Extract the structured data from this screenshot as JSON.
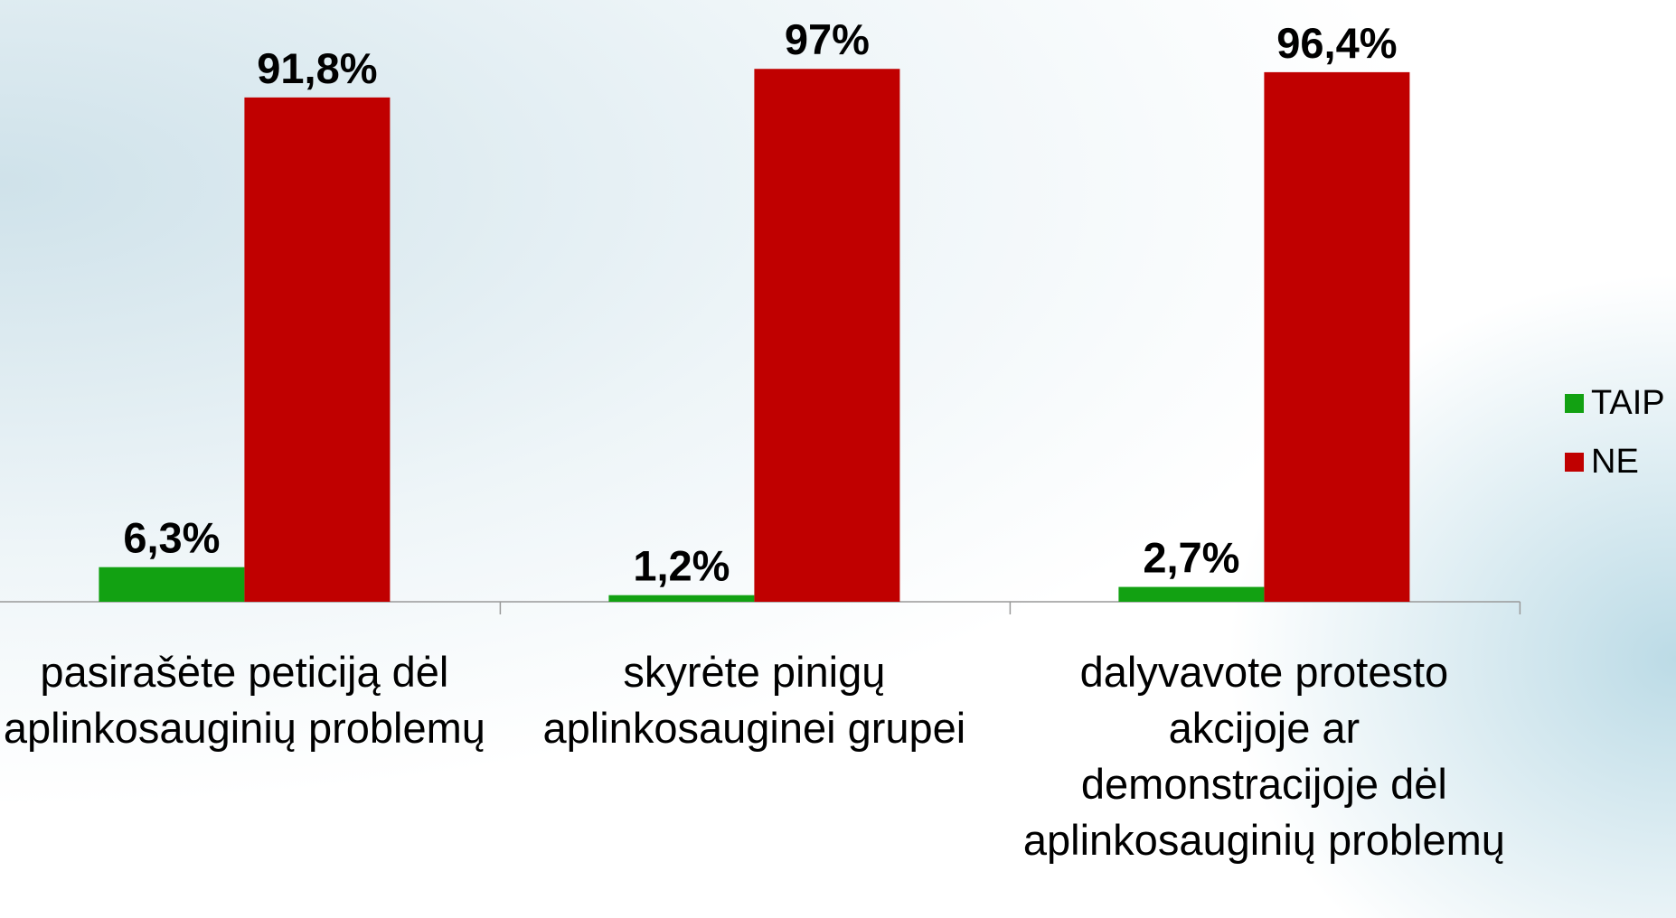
{
  "chart_data": {
    "type": "bar",
    "categories": [
      "pasirašėte peticiją dėl aplinkosauginių problemų",
      "skyrėte pinigų aplinkosauginei grupei",
      "dalyvavote protesto akcijoje ar demonstracijoje dėl aplinkosauginių problemų"
    ],
    "series": [
      {
        "name": "TAIP",
        "color": "#12a112",
        "values": [
          6.3,
          1.2,
          2.7
        ],
        "value_labels": [
          "6,3%",
          "1,2%",
          "2,7%"
        ]
      },
      {
        "name": "NE",
        "color": "#c00000",
        "values": [
          91.8,
          97,
          96.4
        ],
        "value_labels": [
          "91,8%",
          "97%",
          "96,4%"
        ]
      }
    ],
    "ylim": [
      0,
      100
    ],
    "legend": "right"
  }
}
